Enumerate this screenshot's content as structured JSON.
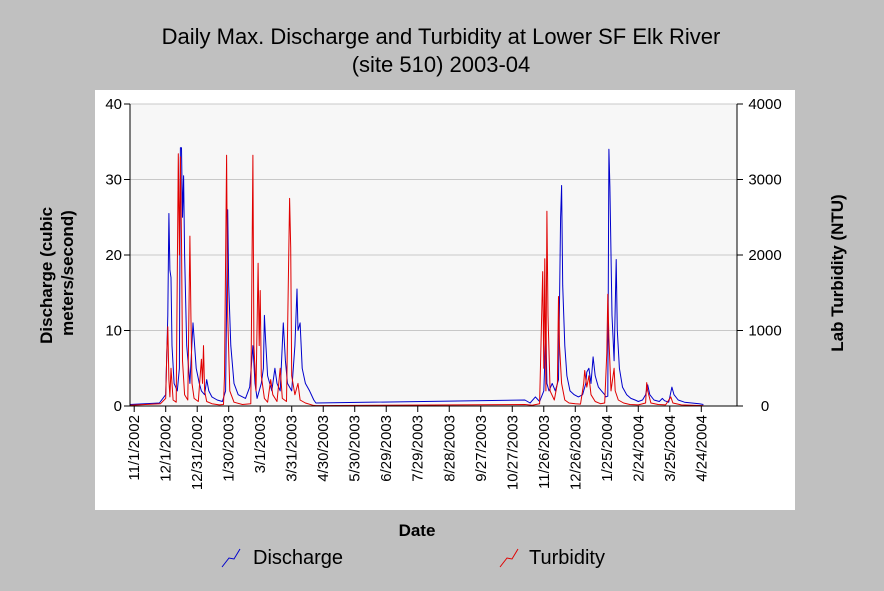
{
  "chart_data": {
    "type": "line",
    "title": "Daily Max. Discharge and Turbidity at Lower SF Elk River",
    "subtitle": "(site 510) 2003-04",
    "xlabel": "Date",
    "ylabel_left": "Discharge (cubic meters/second)",
    "ylabel_left_lines": [
      "Discharge (cubic",
      "meters/second)"
    ],
    "ylabel_right": "Lab Turbidity (NTU)",
    "ylim_left": [
      0,
      40
    ],
    "ylim_right": [
      0,
      4000
    ],
    "yticks_left": [
      "0",
      "10",
      "20",
      "30",
      "40"
    ],
    "yticks_right": [
      "0",
      "1000",
      "2000",
      "3000",
      "4000"
    ],
    "xlim": [
      "2002-10-28",
      "2004-05-28"
    ],
    "xtick_dates": [
      "2002-11-01",
      "2002-12-01",
      "2002-12-31",
      "2003-01-30",
      "2003-03-01",
      "2003-03-31",
      "2003-04-30",
      "2003-05-30",
      "2003-06-29",
      "2003-07-29",
      "2003-08-28",
      "2003-09-27",
      "2003-10-27",
      "2003-11-26",
      "2003-12-26",
      "2004-01-25",
      "2004-02-24",
      "2004-03-25",
      "2004-04-24"
    ],
    "xtick_labels": [
      "11/1/2002",
      "12/1/2002",
      "12/31/2002",
      "1/30/2003",
      "3/1/2003",
      "3/31/2003",
      "4/30/2003",
      "5/30/2003",
      "6/29/2003",
      "7/29/2003",
      "8/28/2003",
      "9/27/2003",
      "10/27/2003",
      "11/26/2003",
      "12/26/2003",
      "1/25/2004",
      "2/24/2004",
      "3/25/2004",
      "4/24/2004"
    ],
    "grid": true,
    "legend_position": "bottom",
    "colors": {
      "discharge": "#0000cc",
      "turbidity": "#e00000"
    },
    "series": [
      {
        "name": "Discharge",
        "axis": "left",
        "points": [
          [
            "2002-10-28",
            0.2
          ],
          [
            "2002-11-25",
            0.4
          ],
          [
            "2002-12-01",
            1.5
          ],
          [
            "2002-12-03",
            12
          ],
          [
            "2002-12-04",
            25.5
          ],
          [
            "2002-12-05",
            18
          ],
          [
            "2002-12-06",
            17
          ],
          [
            "2002-12-07",
            8
          ],
          [
            "2002-12-09",
            3
          ],
          [
            "2002-12-12",
            2
          ],
          [
            "2002-12-14",
            5
          ],
          [
            "2002-12-15",
            34.2
          ],
          [
            "2002-12-16",
            34.2
          ],
          [
            "2002-12-17",
            25
          ],
          [
            "2002-12-18",
            30.5
          ],
          [
            "2002-12-19",
            20
          ],
          [
            "2002-12-21",
            8
          ],
          [
            "2002-12-24",
            3
          ],
          [
            "2002-12-27",
            11
          ],
          [
            "2002-12-28",
            9
          ],
          [
            "2002-12-30",
            5
          ],
          [
            "2003-01-02",
            3
          ],
          [
            "2003-01-04",
            2
          ],
          [
            "2003-01-07",
            1.5
          ],
          [
            "2003-01-09",
            3.5
          ],
          [
            "2003-01-11",
            2
          ],
          [
            "2003-01-14",
            1.2
          ],
          [
            "2003-01-19",
            0.8
          ],
          [
            "2003-01-24",
            0.6
          ],
          [
            "2003-01-27",
            2
          ],
          [
            "2003-01-29",
            26
          ],
          [
            "2003-01-30",
            16
          ],
          [
            "2003-02-01",
            8
          ],
          [
            "2003-02-04",
            3
          ],
          [
            "2003-02-08",
            1.5
          ],
          [
            "2003-02-15",
            1
          ],
          [
            "2003-02-19",
            2.5
          ],
          [
            "2003-02-22",
            8
          ],
          [
            "2003-02-24",
            3
          ],
          [
            "2003-02-26",
            1
          ],
          [
            "2003-03-02",
            3
          ],
          [
            "2003-03-04",
            5
          ],
          [
            "2003-03-05",
            12
          ],
          [
            "2003-03-06",
            9
          ],
          [
            "2003-03-08",
            4
          ],
          [
            "2003-03-12",
            2
          ],
          [
            "2003-03-15",
            5
          ],
          [
            "2003-03-17",
            3
          ],
          [
            "2003-03-20",
            2
          ],
          [
            "2003-03-23",
            11
          ],
          [
            "2003-03-25",
            6
          ],
          [
            "2003-03-27",
            3
          ],
          [
            "2003-03-31",
            2
          ],
          [
            "2003-04-03",
            8
          ],
          [
            "2003-04-05",
            15.5
          ],
          [
            "2003-04-06",
            10
          ],
          [
            "2003-04-08",
            11
          ],
          [
            "2003-04-10",
            5
          ],
          [
            "2003-04-13",
            3
          ],
          [
            "2003-04-17",
            2
          ],
          [
            "2003-04-21",
            0.8
          ],
          [
            "2003-04-23",
            0.4
          ],
          [
            "2003-11-08",
            0.8
          ],
          [
            "2003-11-13",
            0.4
          ],
          [
            "2003-11-18",
            1.2
          ],
          [
            "2003-11-22",
            0.6
          ],
          [
            "2003-11-26",
            2
          ],
          [
            "2003-11-28",
            10
          ],
          [
            "2003-11-29",
            3
          ],
          [
            "2003-12-01",
            2
          ],
          [
            "2003-12-04",
            3
          ],
          [
            "2003-12-07",
            2
          ],
          [
            "2003-12-10",
            3.5
          ],
          [
            "2003-12-12",
            25
          ],
          [
            "2003-12-13",
            29.2
          ],
          [
            "2003-12-14",
            16
          ],
          [
            "2003-12-16",
            8
          ],
          [
            "2003-12-18",
            4
          ],
          [
            "2003-12-21",
            2
          ],
          [
            "2003-12-25",
            1.5
          ],
          [
            "2003-12-29",
            1.2
          ],
          [
            "2004-01-02",
            1.5
          ],
          [
            "2004-01-05",
            3
          ],
          [
            "2004-01-06",
            4.5
          ],
          [
            "2004-01-08",
            5
          ],
          [
            "2004-01-10",
            3
          ],
          [
            "2004-01-12",
            6.5
          ],
          [
            "2004-01-14",
            4
          ],
          [
            "2004-01-17",
            2.5
          ],
          [
            "2004-01-20",
            2
          ],
          [
            "2004-01-23",
            1.5
          ],
          [
            "2004-01-24",
            1.2
          ],
          [
            "2004-01-26",
            1.3
          ],
          [
            "2004-01-27",
            34
          ],
          [
            "2004-01-28",
            29
          ],
          [
            "2004-01-30",
            12
          ],
          [
            "2004-02-01",
            6
          ],
          [
            "2004-02-03",
            19.4
          ],
          [
            "2004-02-04",
            10
          ],
          [
            "2004-02-06",
            5
          ],
          [
            "2004-02-09",
            2.5
          ],
          [
            "2004-02-13",
            1.5
          ],
          [
            "2004-02-17",
            1
          ],
          [
            "2004-02-21",
            0.8
          ],
          [
            "2004-02-24",
            0.6
          ],
          [
            "2004-02-28",
            0.8
          ],
          [
            "2004-03-02",
            1.5
          ],
          [
            "2004-03-04",
            2.8
          ],
          [
            "2004-03-06",
            1.5
          ],
          [
            "2004-03-10",
            0.8
          ],
          [
            "2004-03-15",
            0.6
          ],
          [
            "2004-03-18",
            1
          ],
          [
            "2004-03-20",
            0.7
          ],
          [
            "2004-03-24",
            0.5
          ],
          [
            "2004-03-27",
            2.5
          ],
          [
            "2004-03-29",
            1.5
          ],
          [
            "2004-04-02",
            0.8
          ],
          [
            "2004-04-08",
            0.5
          ],
          [
            "2004-04-15",
            0.4
          ],
          [
            "2004-04-22",
            0.3
          ],
          [
            "2004-04-26",
            0.2
          ]
        ]
      },
      {
        "name": "Turbidity",
        "axis": "right",
        "points": [
          [
            "2002-10-28",
            10
          ],
          [
            "2002-11-26",
            30
          ],
          [
            "2002-12-01",
            100
          ],
          [
            "2002-12-02",
            700
          ],
          [
            "2002-12-03",
            1050
          ],
          [
            "2002-12-04",
            350
          ],
          [
            "2002-12-05",
            120
          ],
          [
            "2002-12-06",
            500
          ],
          [
            "2002-12-08",
            80
          ],
          [
            "2002-12-11",
            50
          ],
          [
            "2002-12-13",
            3340
          ],
          [
            "2002-12-14",
            2000
          ],
          [
            "2002-12-15",
            3300
          ],
          [
            "2002-12-16",
            2200
          ],
          [
            "2002-12-17",
            600
          ],
          [
            "2002-12-19",
            150
          ],
          [
            "2002-12-22",
            80
          ],
          [
            "2002-12-24",
            2250
          ],
          [
            "2002-12-25",
            1200
          ],
          [
            "2002-12-26",
            300
          ],
          [
            "2002-12-28",
            100
          ],
          [
            "2003-01-01",
            60
          ],
          [
            "2003-01-04",
            620
          ],
          [
            "2003-01-05",
            300
          ],
          [
            "2003-01-06",
            800
          ],
          [
            "2003-01-07",
            200
          ],
          [
            "2003-01-09",
            60
          ],
          [
            "2003-01-14",
            30
          ],
          [
            "2003-01-21",
            15
          ],
          [
            "2003-01-25",
            20
          ],
          [
            "2003-01-26",
            400
          ],
          [
            "2003-01-28",
            3320
          ],
          [
            "2003-01-29",
            1200
          ],
          [
            "2003-01-31",
            200
          ],
          [
            "2003-02-04",
            50
          ],
          [
            "2003-02-12",
            20
          ],
          [
            "2003-02-20",
            30
          ],
          [
            "2003-02-22",
            3320
          ],
          [
            "2003-02-23",
            800
          ],
          [
            "2003-02-25",
            200
          ],
          [
            "2003-02-27",
            1890
          ],
          [
            "2003-02-28",
            800
          ],
          [
            "2003-03-01",
            1530
          ],
          [
            "2003-03-02",
            400
          ],
          [
            "2003-03-05",
            100
          ],
          [
            "2003-03-08",
            50
          ],
          [
            "2003-03-11",
            350
          ],
          [
            "2003-03-13",
            150
          ],
          [
            "2003-03-17",
            60
          ],
          [
            "2003-03-20",
            500
          ],
          [
            "2003-03-22",
            100
          ],
          [
            "2003-03-26",
            60
          ],
          [
            "2003-03-29",
            2750
          ],
          [
            "2003-03-30",
            2100
          ],
          [
            "2003-03-31",
            400
          ],
          [
            "2003-04-03",
            150
          ],
          [
            "2003-04-06",
            300
          ],
          [
            "2003-04-08",
            80
          ],
          [
            "2003-04-13",
            40
          ],
          [
            "2003-04-20",
            10
          ],
          [
            "2003-04-23",
            5
          ],
          [
            "2003-11-08",
            20
          ],
          [
            "2003-11-15",
            10
          ],
          [
            "2003-11-22",
            30
          ],
          [
            "2003-11-25",
            1780
          ],
          [
            "2003-11-26",
            500
          ],
          [
            "2003-11-27",
            1950
          ],
          [
            "2003-11-28",
            200
          ],
          [
            "2003-11-29",
            2580
          ],
          [
            "2003-11-30",
            1200
          ],
          [
            "2003-12-02",
            200
          ],
          [
            "2003-12-06",
            80
          ],
          [
            "2003-12-09",
            300
          ],
          [
            "2003-12-10",
            1450
          ],
          [
            "2003-12-11",
            800
          ],
          [
            "2003-12-13",
            300
          ],
          [
            "2003-12-16",
            80
          ],
          [
            "2003-12-20",
            40
          ],
          [
            "2003-12-26",
            30
          ],
          [
            "2003-12-31",
            25
          ],
          [
            "2004-01-03",
            300
          ],
          [
            "2004-01-04",
            470
          ],
          [
            "2004-01-06",
            250
          ],
          [
            "2004-01-08",
            400
          ],
          [
            "2004-01-10",
            150
          ],
          [
            "2004-01-14",
            60
          ],
          [
            "2004-01-19",
            30
          ],
          [
            "2004-01-23",
            40
          ],
          [
            "2004-01-25",
            700
          ],
          [
            "2004-01-26",
            1480
          ],
          [
            "2004-01-27",
            900
          ],
          [
            "2004-01-29",
            200
          ],
          [
            "2004-02-01",
            500
          ],
          [
            "2004-02-02",
            200
          ],
          [
            "2004-02-05",
            80
          ],
          [
            "2004-02-10",
            40
          ],
          [
            "2004-02-16",
            20
          ],
          [
            "2004-02-24",
            15
          ],
          [
            "2004-03-02",
            40
          ],
          [
            "2004-03-03",
            310
          ],
          [
            "2004-03-04",
            200
          ],
          [
            "2004-03-07",
            40
          ],
          [
            "2004-03-14",
            20
          ],
          [
            "2004-03-21",
            15
          ],
          [
            "2004-03-26",
            120
          ],
          [
            "2004-03-28",
            40
          ],
          [
            "2004-04-05",
            15
          ],
          [
            "2004-04-15",
            10
          ],
          [
            "2004-04-26",
            5
          ]
        ]
      }
    ]
  }
}
